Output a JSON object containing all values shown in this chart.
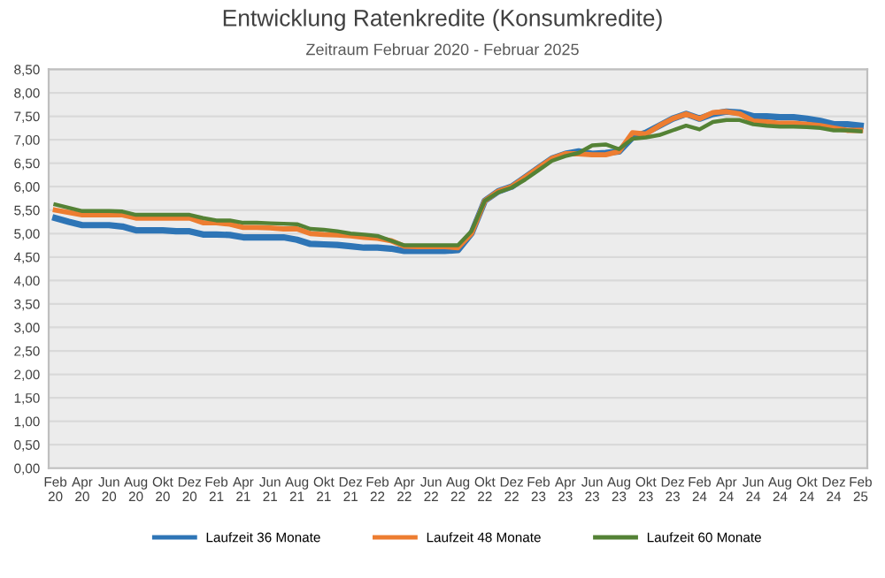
{
  "chart_data": {
    "type": "line",
    "title": "Entwicklung Ratenkredite (Konsumkredite)",
    "subtitle": "Zeitraum Februar 2020 - Februar 2025",
    "categories": [
      "Feb\n20",
      null,
      "Apr\n20",
      null,
      "Jun\n20",
      null,
      "Aug\n20",
      null,
      "Okt\n20",
      null,
      "Dez\n20",
      null,
      "Feb\n21",
      null,
      "Apr\n21",
      null,
      "Jun\n21",
      null,
      "Aug\n21",
      null,
      "Okt\n21",
      null,
      "Dez\n21",
      null,
      "Feb\n22",
      null,
      "Apr\n22",
      null,
      "Jun\n22",
      null,
      "Aug\n22",
      null,
      "Okt\n22",
      null,
      "Dez\n22",
      null,
      "Feb\n23",
      null,
      "Apr\n23",
      null,
      "Jun\n23",
      null,
      "Aug\n23",
      null,
      "Okt\n23",
      null,
      "Dez\n23",
      null,
      "Feb\n24",
      null,
      "Apr\n24",
      null,
      "Jun\n24",
      null,
      "Aug\n24",
      null,
      "Okt\n24",
      null,
      "Dez\n24",
      null,
      "Feb\n25"
    ],
    "series": [
      {
        "name": "Laufzeit 36 Monate",
        "color": "#2e75b6",
        "values": [
          5.33,
          5.25,
          5.18,
          5.18,
          5.18,
          5.15,
          5.07,
          5.07,
          5.07,
          5.05,
          5.05,
          4.98,
          4.98,
          4.97,
          4.92,
          4.92,
          4.92,
          4.92,
          4.87,
          4.78,
          4.77,
          4.76,
          4.73,
          4.7,
          4.7,
          4.68,
          4.63,
          4.63,
          4.63,
          4.63,
          4.65,
          5.0,
          5.7,
          5.9,
          6.0,
          6.2,
          6.4,
          6.6,
          6.7,
          6.75,
          6.7,
          6.72,
          6.75,
          7.05,
          7.15,
          7.3,
          7.45,
          7.55,
          7.45,
          7.55,
          7.6,
          7.58,
          7.5,
          7.5,
          7.48,
          7.48,
          7.45,
          7.4,
          7.33,
          7.33,
          7.3
        ]
      },
      {
        "name": "Laufzeit 48 Monate",
        "color": "#ed7d31",
        "values": [
          5.5,
          5.45,
          5.4,
          5.4,
          5.4,
          5.4,
          5.33,
          5.33,
          5.33,
          5.33,
          5.33,
          5.23,
          5.23,
          5.2,
          5.13,
          5.13,
          5.12,
          5.1,
          5.1,
          5.0,
          4.98,
          4.97,
          4.95,
          4.92,
          4.9,
          4.85,
          4.73,
          4.72,
          4.72,
          4.72,
          4.7,
          5.0,
          5.7,
          5.9,
          6.0,
          6.2,
          6.4,
          6.6,
          6.7,
          6.7,
          6.68,
          6.68,
          6.75,
          7.15,
          7.12,
          7.3,
          7.45,
          7.55,
          7.45,
          7.58,
          7.6,
          7.55,
          7.4,
          7.38,
          7.35,
          7.35,
          7.33,
          7.3,
          7.25,
          7.2,
          7.2
        ]
      },
      {
        "name": "Laufzeit 60 Monate",
        "color": "#548235",
        "values": [
          5.62,
          5.55,
          5.48,
          5.48,
          5.48,
          5.47,
          5.4,
          5.4,
          5.4,
          5.4,
          5.4,
          5.33,
          5.28,
          5.28,
          5.23,
          5.23,
          5.22,
          5.21,
          5.2,
          5.1,
          5.08,
          5.05,
          5.0,
          4.98,
          4.95,
          4.85,
          4.75,
          4.75,
          4.75,
          4.75,
          4.75,
          5.05,
          5.7,
          5.88,
          5.98,
          6.15,
          6.35,
          6.55,
          6.65,
          6.72,
          6.88,
          6.9,
          6.8,
          7.02,
          7.05,
          7.1,
          7.2,
          7.3,
          7.22,
          7.38,
          7.42,
          7.42,
          7.33,
          7.3,
          7.28,
          7.28,
          7.27,
          7.25,
          7.2,
          7.2,
          7.18
        ]
      }
    ],
    "ylim": [
      0,
      8.5
    ],
    "yticks": [
      {
        "value": 0,
        "label": "0,00"
      },
      {
        "value": 0.5,
        "label": "0,50"
      },
      {
        "value": 1,
        "label": "1,00"
      },
      {
        "value": 1.5,
        "label": "1,50"
      },
      {
        "value": 2,
        "label": "2,00"
      },
      {
        "value": 2.5,
        "label": "2,50"
      },
      {
        "value": 3,
        "label": "3,00"
      },
      {
        "value": 3.5,
        "label": "3,50"
      },
      {
        "value": 4,
        "label": "4,00"
      },
      {
        "value": 4.5,
        "label": "4,50"
      },
      {
        "value": 5,
        "label": "5,00"
      },
      {
        "value": 5.5,
        "label": "5,50"
      },
      {
        "value": 6,
        "label": "6,00"
      },
      {
        "value": 6.5,
        "label": "6,50"
      },
      {
        "value": 7,
        "label": "7,00"
      },
      {
        "value": 7.5,
        "label": "7,50"
      },
      {
        "value": 8,
        "label": "8,00"
      },
      {
        "value": 8.5,
        "label": "8,50"
      }
    ],
    "grid": "y",
    "legend": "bottom",
    "marker": "none",
    "line_style": "solid"
  }
}
